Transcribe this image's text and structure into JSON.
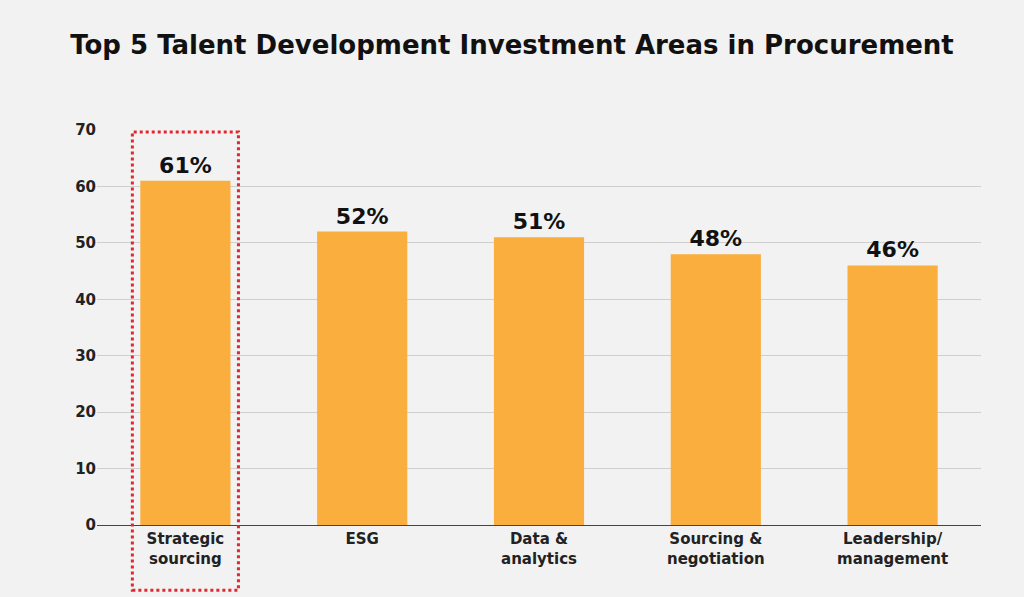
{
  "chart_data": {
    "type": "bar",
    "title": "Top 5 Talent Development Investment Areas in Procurement",
    "categories": [
      "Strategic sourcing",
      "ESG",
      "Data & analytics",
      "Sourcing & negotiation",
      "Leadership/ management"
    ],
    "values": [
      61,
      52,
      51,
      48,
      46
    ],
    "value_labels": [
      "61%",
      "52%",
      "51%",
      "48%",
      "46%"
    ],
    "color": "#f9ae3d",
    "ylim": [
      0,
      70
    ],
    "yticks": [
      0,
      10,
      20,
      30,
      40,
      50,
      60,
      70
    ],
    "grid": true,
    "data_labels": true
  }
}
